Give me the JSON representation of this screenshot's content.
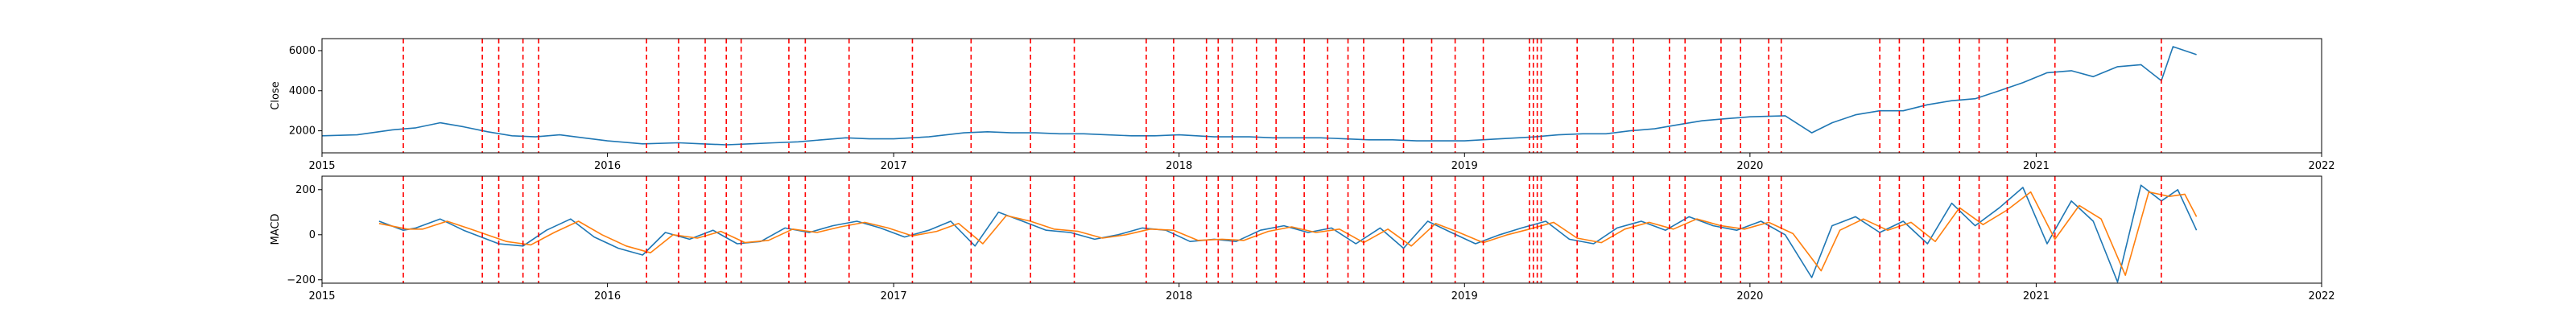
{
  "chart_data": [
    {
      "type": "line",
      "ylabel": "Close",
      "xlim": [
        "2015-01-01",
        "2022-01-01"
      ],
      "ylim": [
        900,
        6600
      ],
      "x_ticks": [
        "2015-01-01",
        "2016-01-01",
        "2017-01-01",
        "2018-01-01",
        "2019-01-01",
        "2020-01-01",
        "2021-01-01",
        "2022-01-01"
      ],
      "x_tick_labels": [
        "2015",
        "2016",
        "2017",
        "2018",
        "2019",
        "2020",
        "2021",
        "2022"
      ],
      "y_ticks": [
        2000,
        4000,
        6000
      ],
      "y_tick_labels": [
        "2000",
        "4000",
        "6000"
      ],
      "grid": false,
      "series_color": "#1f77b4",
      "marker_color": "#ff0000",
      "series": [
        {
          "x": [
            "2015-01-01",
            "2015-02-15",
            "2015-04-01",
            "2015-05-01",
            "2015-06-01",
            "2015-07-01",
            "2015-08-01",
            "2015-09-01",
            "2015-10-01",
            "2015-11-01",
            "2015-12-01",
            "2016-01-01",
            "2016-02-15",
            "2016-04-01",
            "2016-05-01",
            "2016-06-01",
            "2016-07-01",
            "2016-08-01",
            "2016-09-01",
            "2016-10-01",
            "2016-11-01",
            "2016-12-01",
            "2017-01-01",
            "2017-02-15",
            "2017-04-01",
            "2017-05-01",
            "2017-06-01",
            "2017-07-01",
            "2017-08-01",
            "2017-09-01",
            "2017-10-01",
            "2017-11-01",
            "2017-12-01",
            "2018-01-01",
            "2018-02-15",
            "2018-04-01",
            "2018-05-01",
            "2018-06-01",
            "2018-07-01",
            "2018-08-01",
            "2018-09-01",
            "2018-10-01",
            "2018-11-01",
            "2018-12-01",
            "2019-01-01",
            "2019-02-15",
            "2019-04-01",
            "2019-05-01",
            "2019-06-01",
            "2019-07-01",
            "2019-08-01",
            "2019-09-01",
            "2019-10-01",
            "2019-11-01",
            "2019-12-01",
            "2020-01-01",
            "2020-02-15",
            "2020-03-20",
            "2020-04-15",
            "2020-05-15",
            "2020-06-15",
            "2020-07-15",
            "2020-08-15",
            "2020-09-15",
            "2020-10-15",
            "2020-11-15",
            "2020-12-15",
            "2021-01-15",
            "2021-02-15",
            "2021-03-15",
            "2021-04-15",
            "2021-05-15",
            "2021-06-10",
            "2021-06-25",
            "2021-07-25"
          ],
          "y": [
            1750,
            1800,
            2050,
            2150,
            2400,
            2200,
            1950,
            1750,
            1700,
            1800,
            1650,
            1500,
            1350,
            1400,
            1350,
            1300,
            1350,
            1400,
            1450,
            1550,
            1650,
            1600,
            1600,
            1700,
            1900,
            1950,
            1900,
            1900,
            1850,
            1850,
            1800,
            1750,
            1750,
            1800,
            1700,
            1700,
            1650,
            1650,
            1650,
            1600,
            1550,
            1550,
            1500,
            1500,
            1500,
            1600,
            1700,
            1800,
            1850,
            1850,
            2000,
            2100,
            2300,
            2500,
            2600,
            2700,
            2750,
            1900,
            2400,
            2800,
            3000,
            3000,
            3300,
            3500,
            3600,
            4000,
            4400,
            4900,
            5000,
            4700,
            5200,
            5300,
            4500,
            6200,
            5800
          ]
        }
      ]
    },
    {
      "type": "line",
      "ylabel": "MACD",
      "xlim": [
        "2015-01-01",
        "2022-01-01"
      ],
      "ylim": [
        -215,
        260
      ],
      "x_ticks": [
        "2015-01-01",
        "2016-01-01",
        "2017-01-01",
        "2018-01-01",
        "2019-01-01",
        "2020-01-01",
        "2021-01-01",
        "2022-01-01"
      ],
      "x_tick_labels": [
        "2015",
        "2016",
        "2017",
        "2018",
        "2019",
        "2020",
        "2021",
        "2022"
      ],
      "y_ticks": [
        -200,
        0,
        200
      ],
      "y_tick_labels": [
        "−200",
        "0",
        "200"
      ],
      "grid": false,
      "series_colors": [
        "#1f77b4",
        "#ff7f0e"
      ],
      "marker_color": "#ff0000",
      "series": [
        {
          "x": [
            "2015-03-15",
            "2015-04-15",
            "2015-05-01",
            "2015-06-01",
            "2015-07-01",
            "2015-08-15",
            "2015-09-15",
            "2015-10-15",
            "2015-11-15",
            "2015-12-15",
            "2016-01-15",
            "2016-02-15",
            "2016-03-15",
            "2016-04-15",
            "2016-05-15",
            "2016-06-15",
            "2016-07-15",
            "2016-08-15",
            "2016-09-15",
            "2016-10-15",
            "2016-11-15",
            "2016-12-15",
            "2017-01-15",
            "2017-02-15",
            "2017-03-15",
            "2017-04-15",
            "2017-05-15",
            "2017-06-15",
            "2017-07-15",
            "2017-08-15",
            "2017-09-15",
            "2017-10-15",
            "2017-11-15",
            "2017-12-15",
            "2018-01-15",
            "2018-02-15",
            "2018-03-15",
            "2018-04-15",
            "2018-05-15",
            "2018-06-15",
            "2018-07-15",
            "2018-08-15",
            "2018-09-15",
            "2018-10-15",
            "2018-11-15",
            "2018-12-15",
            "2019-01-15",
            "2019-02-15",
            "2019-03-15",
            "2019-04-15",
            "2019-05-15",
            "2019-06-15",
            "2019-07-15",
            "2019-08-15",
            "2019-09-15",
            "2019-10-15",
            "2019-11-15",
            "2019-12-15",
            "2020-01-15",
            "2020-02-15",
            "2020-03-20",
            "2020-04-15",
            "2020-05-15",
            "2020-06-15",
            "2020-07-15",
            "2020-08-15",
            "2020-09-15",
            "2020-10-15",
            "2020-11-15",
            "2020-12-15",
            "2021-01-15",
            "2021-02-15",
            "2021-03-15",
            "2021-04-15",
            "2021-05-15",
            "2021-06-10",
            "2021-07-01",
            "2021-07-25"
          ],
          "y": [
            60,
            20,
            30,
            70,
            20,
            -40,
            -50,
            20,
            70,
            -10,
            -60,
            -90,
            10,
            -20,
            20,
            -40,
            -30,
            30,
            10,
            40,
            60,
            30,
            -10,
            20,
            60,
            -50,
            100,
            60,
            20,
            10,
            -20,
            0,
            30,
            20,
            -30,
            -20,
            -30,
            20,
            40,
            10,
            30,
            -40,
            30,
            -60,
            60,
            10,
            -40,
            0,
            30,
            60,
            -20,
            -40,
            30,
            60,
            20,
            80,
            40,
            20,
            60,
            0,
            -190,
            40,
            80,
            10,
            60,
            -40,
            140,
            40,
            120,
            210,
            -40,
            150,
            60,
            -210,
            220,
            150,
            200,
            20
          ]
        },
        {
          "x": [
            "2015-03-15",
            "2015-04-20",
            "2015-05-10",
            "2015-06-10",
            "2015-07-10",
            "2015-08-25",
            "2015-09-25",
            "2015-10-25",
            "2015-11-25",
            "2015-12-25",
            "2016-01-25",
            "2016-02-25",
            "2016-03-25",
            "2016-04-25",
            "2016-05-25",
            "2016-06-25",
            "2016-07-25",
            "2016-08-25",
            "2016-09-25",
            "2016-10-25",
            "2016-11-25",
            "2016-12-25",
            "2017-01-25",
            "2017-02-25",
            "2017-03-25",
            "2017-04-25",
            "2017-05-25",
            "2017-06-25",
            "2017-07-25",
            "2017-08-25",
            "2017-09-25",
            "2017-10-25",
            "2017-11-25",
            "2017-12-25",
            "2018-01-25",
            "2018-02-25",
            "2018-03-25",
            "2018-04-25",
            "2018-05-25",
            "2018-06-25",
            "2018-07-25",
            "2018-08-25",
            "2018-09-25",
            "2018-10-25",
            "2018-11-25",
            "2018-12-25",
            "2019-01-25",
            "2019-02-25",
            "2019-03-25",
            "2019-04-25",
            "2019-05-25",
            "2019-06-25",
            "2019-07-25",
            "2019-08-25",
            "2019-09-25",
            "2019-10-25",
            "2019-11-25",
            "2019-12-25",
            "2020-01-25",
            "2020-02-25",
            "2020-04-01",
            "2020-04-25",
            "2020-05-25",
            "2020-06-25",
            "2020-07-25",
            "2020-08-25",
            "2020-09-25",
            "2020-10-25",
            "2020-11-25",
            "2020-12-25",
            "2021-01-25",
            "2021-02-25",
            "2021-03-25",
            "2021-04-25",
            "2021-05-25",
            "2021-06-20",
            "2021-07-10",
            "2021-07-25"
          ],
          "y": [
            50,
            25,
            25,
            60,
            25,
            -30,
            -45,
            10,
            60,
            0,
            -50,
            -80,
            0,
            -15,
            15,
            -35,
            -25,
            25,
            10,
            35,
            55,
            30,
            -5,
            15,
            50,
            -40,
            85,
            60,
            25,
            15,
            -15,
            0,
            25,
            20,
            -25,
            -20,
            -25,
            15,
            35,
            10,
            25,
            -35,
            25,
            -50,
            50,
            10,
            -35,
            0,
            25,
            55,
            -15,
            -35,
            25,
            55,
            25,
            70,
            40,
            25,
            55,
            5,
            -160,
            20,
            70,
            20,
            55,
            -30,
            120,
            45,
            110,
            190,
            -20,
            130,
            70,
            -180,
            190,
            170,
            180,
            80
          ]
        }
      ]
    }
  ],
  "signal_dates": [
    "2015-04-15",
    "2015-07-25",
    "2015-08-15",
    "2015-09-15",
    "2015-10-05",
    "2016-02-20",
    "2016-04-01",
    "2016-05-05",
    "2016-06-01",
    "2016-06-20",
    "2016-08-20",
    "2016-09-10",
    "2016-11-05",
    "2017-01-25",
    "2017-04-10",
    "2017-06-25",
    "2017-08-20",
    "2017-11-20",
    "2017-12-25",
    "2018-02-05",
    "2018-02-20",
    "2018-03-10",
    "2018-04-10",
    "2018-05-05",
    "2018-06-10",
    "2018-07-10",
    "2018-08-05",
    "2018-08-25",
    "2018-10-15",
    "2018-11-20",
    "2018-12-20",
    "2019-01-25",
    "2019-03-25",
    "2019-03-30",
    "2019-04-04",
    "2019-04-09",
    "2019-05-25",
    "2019-07-10",
    "2019-08-05",
    "2019-09-20",
    "2019-10-10",
    "2019-11-25",
    "2019-12-20",
    "2020-01-25",
    "2020-02-10",
    "2020-06-15",
    "2020-07-10",
    "2020-08-10",
    "2020-09-25",
    "2020-10-20",
    "2020-11-25",
    "2021-01-25",
    "2021-06-10"
  ]
}
